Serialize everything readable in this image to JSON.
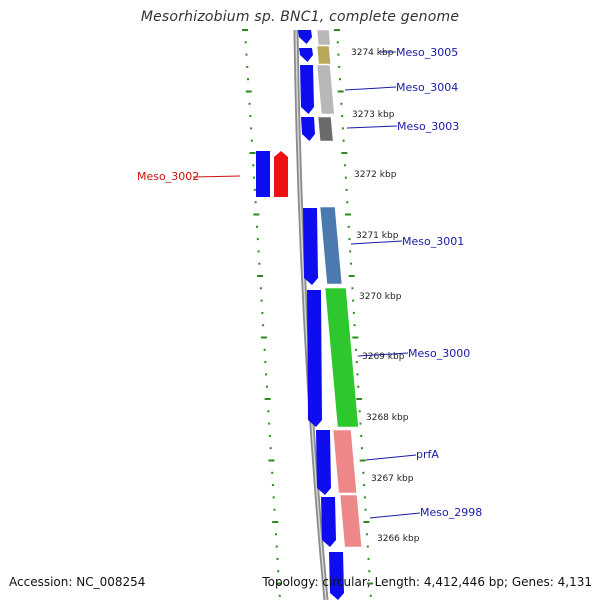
{
  "title": "Mesorhizobium sp. BNC1, complete genome",
  "footer": {
    "accession": "Accession: NC_008254",
    "topology": "Topology: circular; Length: 4,412,446 bp; Genes: 4,131"
  },
  "colors": {
    "cds": "#0d0df0",
    "reverse_feature": "#ee1111",
    "ticks": "#2c8a1e",
    "backbone": "#8c8c8c",
    "label_blue": "#1a1aa8",
    "label_red": "#cc1111"
  },
  "ticks": [
    "3274 kbp",
    "3273 kbp",
    "3272 kbp",
    "3271 kbp",
    "3270 kbp",
    "3269 kbp",
    "3268 kbp",
    "3267 kbp",
    "3266 kbp"
  ],
  "genes": [
    {
      "label": "Meso_3005",
      "color": "#b9a85a"
    },
    {
      "label": "Meso_3004",
      "color": "#b8b8b8"
    },
    {
      "label": "Meso_3003",
      "color": "#6a6a6a"
    },
    {
      "label": "Meso_3002",
      "color": "#ee1111"
    },
    {
      "label": "Meso_3001",
      "color": "#4a7ab0"
    },
    {
      "label": "Meso_3000",
      "color": "#2ec82e"
    },
    {
      "label": "prfA",
      "color": "#ee8888"
    },
    {
      "label": "Meso_2998",
      "color": "#ee8888"
    }
  ]
}
